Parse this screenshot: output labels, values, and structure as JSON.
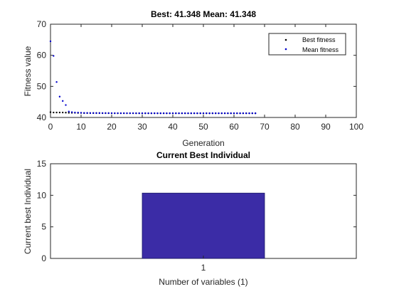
{
  "chart_data": [
    {
      "type": "scatter",
      "title": "Best: 41.348 Mean: 41.348",
      "xlabel": "Generation",
      "ylabel": "Fitness value",
      "xlim": [
        0,
        100
      ],
      "ylim": [
        40,
        70
      ],
      "xticks": [
        0,
        10,
        20,
        30,
        40,
        50,
        60,
        70,
        80,
        90,
        100
      ],
      "yticks": [
        40,
        50,
        60,
        70
      ],
      "grid": false,
      "legend": "top-right",
      "series": [
        {
          "name": "Best fitness",
          "color": "#000000",
          "marker": "dot",
          "x": [
            0,
            1,
            2,
            3,
            4,
            5,
            6,
            7,
            8,
            9,
            10,
            11,
            12,
            13,
            14,
            15,
            16,
            17,
            18,
            19,
            20,
            21,
            22,
            23,
            24,
            25,
            26,
            27,
            28,
            29,
            30,
            31,
            32,
            33,
            34,
            35,
            36,
            37,
            38,
            39,
            40,
            41,
            42,
            43,
            44,
            45,
            46,
            47,
            48,
            49,
            50,
            51,
            52,
            53,
            54,
            55,
            56,
            57,
            58,
            59,
            60,
            61,
            62,
            63,
            64,
            65,
            66,
            67
          ],
          "y": [
            41.7,
            41.6,
            41.6,
            41.6,
            41.6,
            41.55,
            41.5,
            41.5,
            41.5,
            41.45,
            41.45,
            41.4,
            41.4,
            41.4,
            41.4,
            41.4,
            41.4,
            41.38,
            41.38,
            41.38,
            41.37,
            41.37,
            41.37,
            41.36,
            41.36,
            41.36,
            41.36,
            41.36,
            41.35,
            41.35,
            41.35,
            41.35,
            41.35,
            41.35,
            41.35,
            41.35,
            41.35,
            41.35,
            41.35,
            41.35,
            41.35,
            41.35,
            41.35,
            41.35,
            41.35,
            41.35,
            41.35,
            41.35,
            41.35,
            41.35,
            41.35,
            41.35,
            41.35,
            41.35,
            41.35,
            41.35,
            41.35,
            41.35,
            41.35,
            41.35,
            41.35,
            41.35,
            41.35,
            41.35,
            41.35,
            41.35,
            41.35,
            41.348
          ]
        },
        {
          "name": "Mean fitness",
          "color": "#0000cc",
          "marker": "dot",
          "x": [
            0,
            1,
            2,
            3,
            4,
            5,
            6,
            7,
            8,
            9,
            10,
            11,
            12,
            13,
            14,
            15,
            16,
            17,
            18,
            19,
            20,
            21,
            22,
            23,
            24,
            25,
            26,
            27,
            28,
            29,
            30,
            31,
            32,
            33,
            34,
            35,
            36,
            37,
            38,
            39,
            40,
            41,
            42,
            43,
            44,
            45,
            46,
            47,
            48,
            49,
            50,
            51,
            52,
            53,
            54,
            55,
            56,
            57,
            58,
            59,
            60,
            61,
            62,
            63,
            64,
            65,
            66,
            67
          ],
          "y": [
            64.5,
            59.8,
            51.4,
            46.7,
            45.3,
            44.0,
            41.9,
            41.7,
            41.6,
            41.55,
            41.5,
            41.45,
            41.43,
            41.42,
            41.41,
            41.4,
            41.4,
            41.39,
            41.39,
            41.38,
            41.38,
            41.37,
            41.37,
            41.37,
            41.36,
            41.36,
            41.36,
            41.36,
            41.36,
            41.36,
            41.35,
            41.35,
            41.35,
            41.35,
            41.35,
            41.35,
            41.35,
            41.35,
            41.35,
            41.35,
            41.35,
            41.35,
            41.35,
            41.35,
            41.35,
            41.35,
            41.35,
            41.35,
            41.35,
            41.35,
            41.35,
            41.35,
            41.35,
            41.35,
            41.35,
            41.35,
            41.35,
            41.35,
            41.35,
            41.35,
            41.35,
            41.35,
            41.35,
            41.35,
            41.35,
            41.35,
            41.35,
            41.348
          ]
        }
      ]
    },
    {
      "type": "bar",
      "title": "Current Best Individual",
      "xlabel": "Number of variables (1)",
      "ylabel": "Current best Individual",
      "categories": [
        "1"
      ],
      "values": [
        10.35
      ],
      "ylim": [
        0,
        15
      ],
      "yticks": [
        0,
        5,
        10,
        15
      ],
      "bar_color": "#3b2ca6",
      "grid": false
    }
  ]
}
